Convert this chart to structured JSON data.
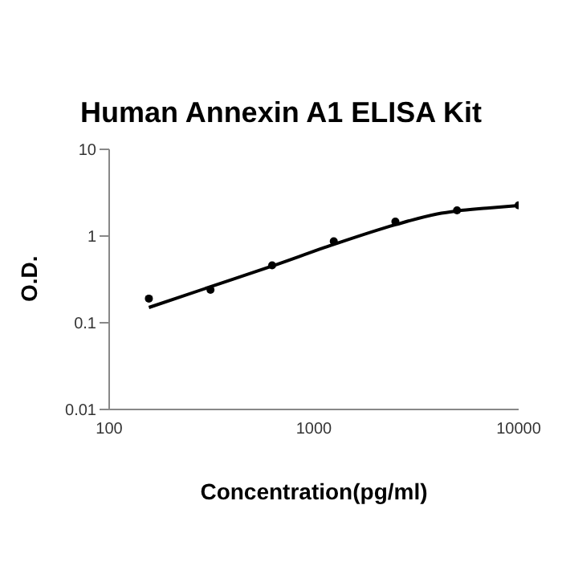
{
  "chart_data": {
    "type": "scatter",
    "title": "Human Annexin A1 ELISA Kit",
    "xlabel": "Concentration(pg/ml)",
    "ylabel": "O.D.",
    "log": "xy",
    "xlim": [
      100,
      10000
    ],
    "xticks": [
      100,
      1000,
      10000
    ],
    "ylim": [
      0.01,
      10
    ],
    "yticks": [
      0.01,
      0.1,
      1,
      10
    ],
    "grid": false,
    "legend": false,
    "series": [
      {
        "color": "#000000",
        "marker": "circle",
        "x": [
          156.25,
          312.5,
          625,
          1250,
          2500,
          5000,
          10000
        ],
        "values": [
          0.19,
          0.24,
          0.46,
          0.87,
          1.47,
          1.98,
          2.26
        ]
      },
      {
        "type": "line",
        "color": "#000000",
        "marker": "none",
        "line_style": "solid",
        "x": [
          156.25,
          312.5,
          625,
          1250,
          2500,
          4000,
          5000,
          7000,
          10000
        ],
        "values": [
          0.15,
          0.26,
          0.45,
          0.8,
          1.35,
          1.8,
          1.95,
          2.1,
          2.25
        ]
      }
    ]
  }
}
